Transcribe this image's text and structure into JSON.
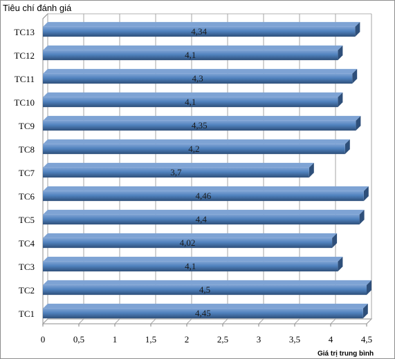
{
  "chart_data": {
    "type": "bar",
    "orientation": "horizontal",
    "ylabel": "Tiêu chí đánh giá",
    "xlabel": "Giá trị trung bình",
    "categories": [
      "TC1",
      "TC2",
      "TC3",
      "TC4",
      "TC5",
      "TC6",
      "TC7",
      "TC8",
      "TC9",
      "TC10",
      "TC11",
      "TC12",
      "TC13"
    ],
    "values": [
      4.45,
      4.5,
      4.1,
      4.02,
      4.4,
      4.46,
      3.7,
      4.2,
      4.35,
      4.1,
      4.3,
      4.1,
      4.34
    ],
    "value_labels": [
      "4,45",
      "4,5",
      "4,1",
      "4,02",
      "4,4",
      "4,46",
      "3,7",
      "4,2",
      "4,35",
      "4,1",
      "4,3",
      "4,1",
      "4,34"
    ],
    "x_ticks": [
      0,
      0.5,
      1,
      1.5,
      2,
      2.5,
      3,
      3.5,
      4,
      4.5
    ],
    "x_tick_labels": [
      "0",
      "0,5",
      "1",
      "1,5",
      "2",
      "2,5",
      "3",
      "3,5",
      "4",
      "4,5"
    ],
    "xlim": [
      0,
      4.5
    ],
    "grid": "vertical",
    "legend": "none",
    "bar_color": "#4f81bd",
    "bar_top_color": "#7ea3d4",
    "bar_side_color": "#2e4f7a",
    "style": "3d"
  }
}
